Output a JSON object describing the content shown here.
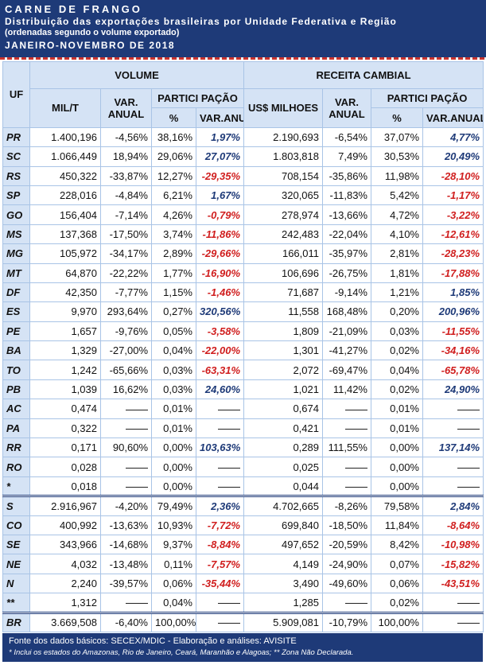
{
  "header": {
    "title": "CARNE DE FRANGO",
    "subtitle": "Distribuição das exportações brasileiras por Unidade Federativa e Região",
    "note": "(ordenadas segundo o volume exportado)",
    "period": "JANEIRO-NOVEMBRO DE 2018"
  },
  "columns": {
    "uf": "UF",
    "volume": "VOLUME",
    "receita": "RECEITA CAMBIAL",
    "mil_t": "MIL/T",
    "var_anual": "VAR. ANUAL",
    "participacao": "PARTICI PAÇÃO",
    "pct": "%",
    "var_anual_small": "VAR.ANUAL",
    "us_milhoes": "US$ MILHOES"
  },
  "rows": [
    {
      "uf": "PR",
      "vol": "1.400,196",
      "vol_var": "-4,56%",
      "vol_pct": "38,16%",
      "vol_pvar": "1,97%",
      "rec": "2.190,693",
      "rec_var": "-6,54%",
      "rec_pct": "37,07%",
      "rec_pvar": "4,77%"
    },
    {
      "uf": "SC",
      "vol": "1.066,449",
      "vol_var": "18,94%",
      "vol_pct": "29,06%",
      "vol_pvar": "27,07%",
      "rec": "1.803,818",
      "rec_var": "7,49%",
      "rec_pct": "30,53%",
      "rec_pvar": "20,49%"
    },
    {
      "uf": "RS",
      "vol": "450,322",
      "vol_var": "-33,87%",
      "vol_pct": "12,27%",
      "vol_pvar": "-29,35%",
      "rec": "708,154",
      "rec_var": "-35,86%",
      "rec_pct": "11,98%",
      "rec_pvar": "-28,10%"
    },
    {
      "uf": "SP",
      "vol": "228,016",
      "vol_var": "-4,84%",
      "vol_pct": "6,21%",
      "vol_pvar": "1,67%",
      "rec": "320,065",
      "rec_var": "-11,83%",
      "rec_pct": "5,42%",
      "rec_pvar": "-1,17%"
    },
    {
      "uf": "GO",
      "vol": "156,404",
      "vol_var": "-7,14%",
      "vol_pct": "4,26%",
      "vol_pvar": "-0,79%",
      "rec": "278,974",
      "rec_var": "-13,66%",
      "rec_pct": "4,72%",
      "rec_pvar": "-3,22%"
    },
    {
      "uf": "MS",
      "vol": "137,368",
      "vol_var": "-17,50%",
      "vol_pct": "3,74%",
      "vol_pvar": "-11,86%",
      "rec": "242,483",
      "rec_var": "-22,04%",
      "rec_pct": "4,10%",
      "rec_pvar": "-12,61%"
    },
    {
      "uf": "MG",
      "vol": "105,972",
      "vol_var": "-34,17%",
      "vol_pct": "2,89%",
      "vol_pvar": "-29,66%",
      "rec": "166,011",
      "rec_var": "-35,97%",
      "rec_pct": "2,81%",
      "rec_pvar": "-28,23%"
    },
    {
      "uf": "MT",
      "vol": "64,870",
      "vol_var": "-22,22%",
      "vol_pct": "1,77%",
      "vol_pvar": "-16,90%",
      "rec": "106,696",
      "rec_var": "-26,75%",
      "rec_pct": "1,81%",
      "rec_pvar": "-17,88%"
    },
    {
      "uf": "DF",
      "vol": "42,350",
      "vol_var": "-7,77%",
      "vol_pct": "1,15%",
      "vol_pvar": "-1,46%",
      "rec": "71,687",
      "rec_var": "-9,14%",
      "rec_pct": "1,21%",
      "rec_pvar": "1,85%"
    },
    {
      "uf": "ES",
      "vol": "9,970",
      "vol_var": "293,64%",
      "vol_pct": "0,27%",
      "vol_pvar": "320,56%",
      "rec": "11,558",
      "rec_var": "168,48%",
      "rec_pct": "0,20%",
      "rec_pvar": "200,96%"
    },
    {
      "uf": "PE",
      "vol": "1,657",
      "vol_var": "-9,76%",
      "vol_pct": "0,05%",
      "vol_pvar": "-3,58%",
      "rec": "1,809",
      "rec_var": "-21,09%",
      "rec_pct": "0,03%",
      "rec_pvar": "-11,55%"
    },
    {
      "uf": "BA",
      "vol": "1,329",
      "vol_var": "-27,00%",
      "vol_pct": "0,04%",
      "vol_pvar": "-22,00%",
      "rec": "1,301",
      "rec_var": "-41,27%",
      "rec_pct": "0,02%",
      "rec_pvar": "-34,16%"
    },
    {
      "uf": "TO",
      "vol": "1,242",
      "vol_var": "-65,66%",
      "vol_pct": "0,03%",
      "vol_pvar": "-63,31%",
      "rec": "2,072",
      "rec_var": "-69,47%",
      "rec_pct": "0,04%",
      "rec_pvar": "-65,78%"
    },
    {
      "uf": "PB",
      "vol": "1,039",
      "vol_var": "16,62%",
      "vol_pct": "0,03%",
      "vol_pvar": "24,60%",
      "rec": "1,021",
      "rec_var": "11,42%",
      "rec_pct": "0,02%",
      "rec_pvar": "24,90%"
    },
    {
      "uf": "AC",
      "vol": "0,474",
      "vol_var": "",
      "vol_pct": "0,01%",
      "vol_pvar": "",
      "rec": "0,674",
      "rec_var": "",
      "rec_pct": "0,01%",
      "rec_pvar": ""
    },
    {
      "uf": "PA",
      "vol": "0,322",
      "vol_var": "",
      "vol_pct": "0,01%",
      "vol_pvar": "",
      "rec": "0,421",
      "rec_var": "",
      "rec_pct": "0,01%",
      "rec_pvar": ""
    },
    {
      "uf": "RR",
      "vol": "0,171",
      "vol_var": "90,60%",
      "vol_pct": "0,00%",
      "vol_pvar": "103,63%",
      "rec": "0,289",
      "rec_var": "111,55%",
      "rec_pct": "0,00%",
      "rec_pvar": "137,14%"
    },
    {
      "uf": "RO",
      "vol": "0,028",
      "vol_var": "",
      "vol_pct": "0,00%",
      "vol_pvar": "",
      "rec": "0,025",
      "rec_var": "",
      "rec_pct": "0,00%",
      "rec_pvar": ""
    },
    {
      "uf": "*",
      "vol": "0,018",
      "vol_var": "",
      "vol_pct": "0,00%",
      "vol_pvar": "",
      "rec": "0,044",
      "rec_var": "",
      "rec_pct": "0,00%",
      "rec_pvar": ""
    },
    {
      "uf": "S",
      "vol": "2.916,967",
      "vol_var": "-4,20%",
      "vol_pct": "79,49%",
      "vol_pvar": "2,36%",
      "rec": "4.702,665",
      "rec_var": "-8,26%",
      "rec_pct": "79,58%",
      "rec_pvar": "2,84%"
    },
    {
      "uf": "CO",
      "vol": "400,992",
      "vol_var": "-13,63%",
      "vol_pct": "10,93%",
      "vol_pvar": "-7,72%",
      "rec": "699,840",
      "rec_var": "-18,50%",
      "rec_pct": "11,84%",
      "rec_pvar": "-8,64%"
    },
    {
      "uf": "SE",
      "vol": "343,966",
      "vol_var": "-14,68%",
      "vol_pct": "9,37%",
      "vol_pvar": "-8,84%",
      "rec": "497,652",
      "rec_var": "-20,59%",
      "rec_pct": "8,42%",
      "rec_pvar": "-10,98%"
    },
    {
      "uf": "NE",
      "vol": "4,032",
      "vol_var": "-13,48%",
      "vol_pct": "0,11%",
      "vol_pvar": "-7,57%",
      "rec": "4,149",
      "rec_var": "-24,90%",
      "rec_pct": "0,07%",
      "rec_pvar": "-15,82%"
    },
    {
      "uf": "N",
      "vol": "2,240",
      "vol_var": "-39,57%",
      "vol_pct": "0,06%",
      "vol_pvar": "-35,44%",
      "rec": "3,490",
      "rec_var": "-49,60%",
      "rec_pct": "0,06%",
      "rec_pvar": "-43,51%"
    },
    {
      "uf": "**",
      "vol": "1,312",
      "vol_var": "",
      "vol_pct": "0,04%",
      "vol_pvar": "",
      "rec": "1,285",
      "rec_var": "",
      "rec_pct": "0,02%",
      "rec_pvar": ""
    },
    {
      "uf": "BR",
      "vol": "3.669,508",
      "vol_var": "-6,40%",
      "vol_pct": "100,00%",
      "vol_pvar": "",
      "rec": "5.909,081",
      "rec_var": "-10,79%",
      "rec_pct": "100,00%",
      "rec_pvar": ""
    }
  ],
  "footer": {
    "source": "Fonte dos dados básicos: SECEX/MDIC - Elaboração e análises: AVISITE",
    "note": "* Inclui os estados do Amazonas, Rio de Janeiro, Ceará, Maranhão e Alagoas; ** Zona Não Declarada."
  }
}
